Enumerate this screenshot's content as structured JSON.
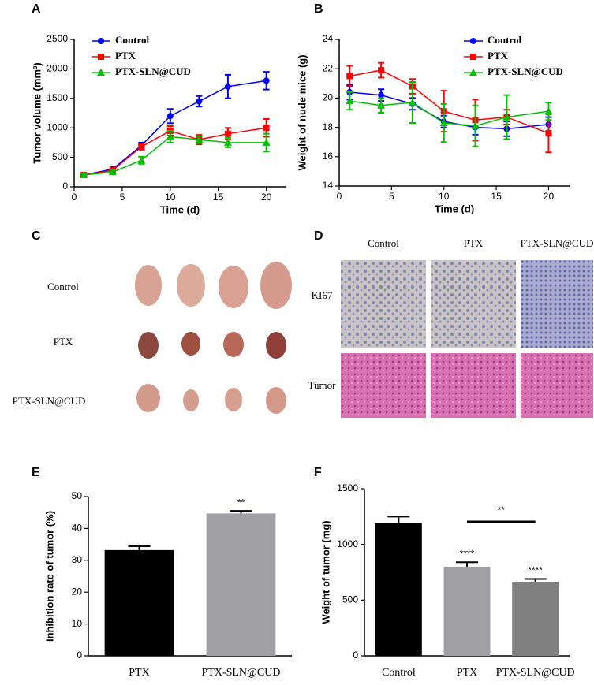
{
  "chart_data": [
    {
      "type": "line",
      "panel_label": "A",
      "x_label": "Time (d)",
      "y_label": "Tumor volume (mm³)",
      "x": [
        1,
        4,
        7,
        10,
        13,
        16,
        20
      ],
      "xlim": [
        0,
        22
      ],
      "xticks": [
        0,
        5,
        10,
        15,
        20
      ],
      "ylim": [
        0,
        2500
      ],
      "yticks": [
        0,
        500,
        1000,
        1500,
        2000,
        2500
      ],
      "legend": "upper left",
      "series": [
        {
          "name": "Control",
          "color": "#0000ff",
          "values": [
            200,
            300,
            700,
            1200,
            1450,
            1700,
            1800
          ],
          "errors": [
            20,
            30,
            50,
            120,
            90,
            200,
            150
          ]
        },
        {
          "name": "PTX",
          "color": "#ff0000",
          "values": [
            200,
            280,
            680,
            950,
            800,
            900,
            1000
          ],
          "errors": [
            20,
            20,
            50,
            80,
            80,
            100,
            150
          ]
        },
        {
          "name": "PTX-SLN@CUD",
          "color": "#00c000",
          "values": [
            200,
            250,
            450,
            850,
            800,
            750,
            750
          ],
          "errors": [
            20,
            30,
            60,
            100,
            60,
            80,
            150
          ]
        }
      ]
    },
    {
      "type": "line",
      "panel_label": "B",
      "x_label": "Time (d)",
      "y_label": "Weight of nude mice (g)",
      "x": [
        1,
        4,
        7,
        10,
        13,
        16,
        20
      ],
      "xlim": [
        0,
        22
      ],
      "xticks": [
        0,
        5,
        10,
        15,
        20
      ],
      "ylim": [
        14,
        24
      ],
      "yticks": [
        14,
        16,
        18,
        20,
        22,
        24
      ],
      "legend": "upper right",
      "series": [
        {
          "name": "Control",
          "color": "#0000ff",
          "values": [
            20.4,
            20.2,
            19.6,
            18.4,
            18.0,
            17.9,
            18.2
          ],
          "errors": [
            0.5,
            0.4,
            0.4,
            0.4,
            0.5,
            0.5,
            0.5
          ]
        },
        {
          "name": "PTX",
          "color": "#ff0000",
          "values": [
            21.5,
            21.9,
            20.8,
            19.1,
            18.5,
            18.7,
            17.6
          ],
          "errors": [
            0.7,
            0.5,
            0.5,
            1.4,
            1.4,
            0.5,
            1.3
          ]
        },
        {
          "name": "PTX-SLN@CUD",
          "color": "#00c000",
          "values": [
            19.8,
            19.5,
            19.7,
            18.3,
            18.1,
            18.7,
            19.1
          ],
          "errors": [
            0.6,
            0.5,
            1.4,
            1.3,
            1.4,
            1.5,
            0.6
          ]
        }
      ]
    },
    {
      "type": "bar",
      "panel_label": "E",
      "y_label": "Inhibition rate of tumor (%)",
      "categories": [
        "PTX",
        "PTX-SLN@CUD"
      ],
      "values": [
        33.2,
        44.7
      ],
      "errors": [
        1.2,
        0.8
      ],
      "colors": [
        "#000000",
        "#a0a0a4"
      ],
      "ylim": [
        0,
        50
      ],
      "yticks": [
        0,
        10,
        20,
        30,
        40,
        50
      ],
      "annotations": [
        "**"
      ]
    },
    {
      "type": "bar",
      "panel_label": "F",
      "y_label": "Weight of tumor (mg)",
      "categories": [
        "Control",
        "PTX",
        "PTX-SLN@CUD"
      ],
      "values": [
        1190,
        800,
        665
      ],
      "errors": [
        60,
        40,
        25
      ],
      "colors": [
        "#000000",
        "#a0a0a4",
        "#808080"
      ],
      "ylim": [
        0,
        1500
      ],
      "yticks": [
        0,
        500,
        1000,
        1500
      ],
      "annotations": [
        "****",
        "****",
        "**"
      ]
    }
  ],
  "photo_panels": [
    {
      "panel_label": "C",
      "row_labels": [
        "Control",
        "PTX",
        "PTX-SLN@CUD"
      ]
    },
    {
      "panel_label": "D",
      "column_labels": [
        "Control",
        "PTX",
        "PTX-SLN@CUD"
      ],
      "row_labels": [
        "KI67",
        "Tumor"
      ]
    }
  ]
}
